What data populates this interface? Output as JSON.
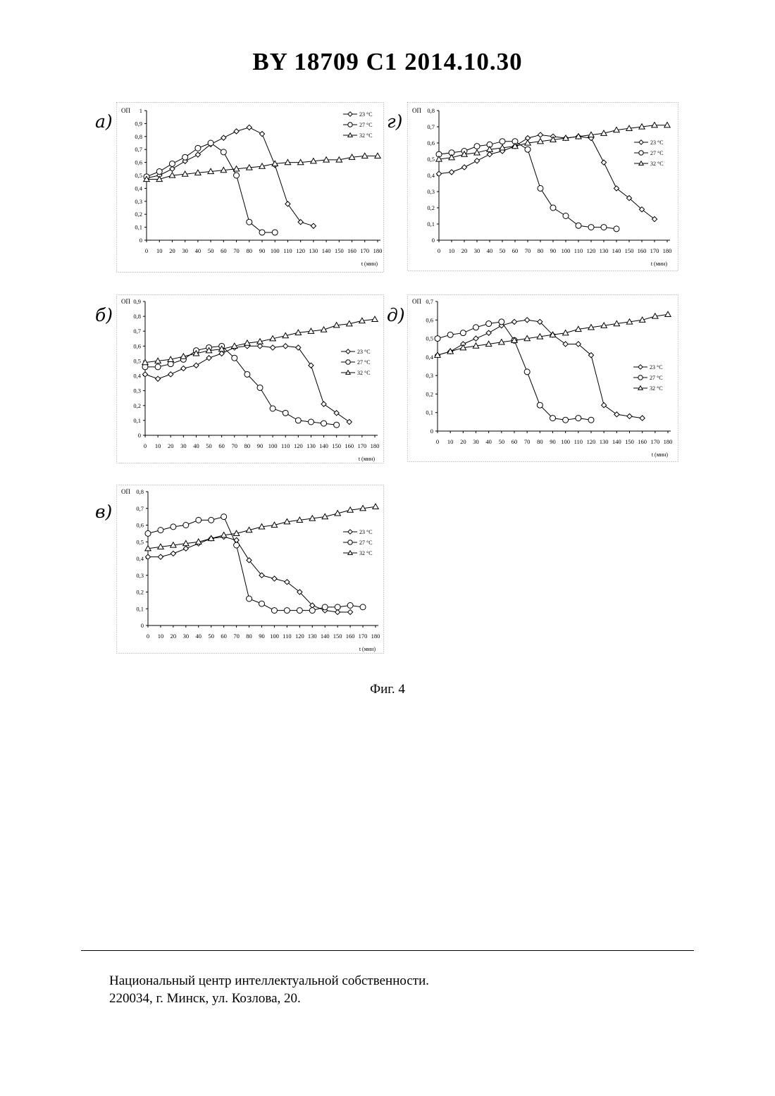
{
  "header": {
    "title": "BY  18709  C1  2014.10.30"
  },
  "caption": "Фиг. 4",
  "footer": {
    "line1": "Национальный центр интеллектуальной собственности.",
    "line2": "220034, г. Минск, ул. Козлова, 20."
  },
  "legend_labels": [
    "23 °C",
    "27 °C",
    "32 °C"
  ],
  "chart_data": [
    {
      "id": "a",
      "panel_label": "а)",
      "type": "line",
      "ylabel": "ОП",
      "xlabel": "t (мин)",
      "xlim": [
        0,
        180
      ],
      "ylim": [
        0,
        1
      ],
      "xticks": [
        "0",
        "10",
        "20",
        "30",
        "40",
        "50",
        "60",
        "70",
        "80",
        "90",
        "100",
        "110",
        "120",
        "130",
        "140",
        "150",
        "160",
        "170",
        "180"
      ],
      "yticks": [
        "0",
        "0,1",
        "0,2",
        "0,3",
        "0,4",
        "0,5",
        "0,6",
        "0,7",
        "0,8",
        "0,9",
        "1"
      ],
      "legend_position": "top-right",
      "series": [
        {
          "name": "23 °C",
          "marker": "diamond",
          "x": [
            0,
            10,
            20,
            30,
            40,
            50,
            60,
            70,
            80,
            90,
            100,
            110,
            120,
            130
          ],
          "y": [
            0.48,
            0.5,
            0.55,
            0.61,
            0.66,
            0.74,
            0.79,
            0.84,
            0.87,
            0.82,
            0.58,
            0.28,
            0.14,
            0.11
          ]
        },
        {
          "name": "27 °C",
          "marker": "circle",
          "x": [
            0,
            10,
            20,
            30,
            40,
            50,
            60,
            70,
            80,
            90,
            100
          ],
          "y": [
            0.49,
            0.53,
            0.59,
            0.64,
            0.71,
            0.75,
            0.68,
            0.5,
            0.14,
            0.06,
            0.06
          ]
        },
        {
          "name": "32 °C",
          "marker": "triangle",
          "x": [
            0,
            10,
            20,
            30,
            40,
            50,
            60,
            70,
            80,
            90,
            100,
            110,
            120,
            130,
            140,
            150,
            160,
            170,
            180
          ],
          "y": [
            0.47,
            0.47,
            0.5,
            0.51,
            0.52,
            0.53,
            0.54,
            0.55,
            0.56,
            0.57,
            0.59,
            0.6,
            0.6,
            0.61,
            0.62,
            0.62,
            0.64,
            0.65,
            0.65
          ]
        }
      ]
    },
    {
      "id": "g",
      "panel_label": "г)",
      "type": "line",
      "ylabel": "ОП",
      "xlabel": "t (мин)",
      "xlim": [
        0,
        180
      ],
      "ylim": [
        0,
        0.8
      ],
      "xticks": [
        "0",
        "10",
        "20",
        "30",
        "40",
        "50",
        "60",
        "70",
        "80",
        "90",
        "100",
        "110",
        "120",
        "130",
        "140",
        "150",
        "160",
        "170",
        "180"
      ],
      "yticks": [
        "0",
        "0,1",
        "0,2",
        "0,3",
        "0,4",
        "0,5",
        "0,6",
        "0,7",
        "0,8"
      ],
      "legend_position": "right",
      "series": [
        {
          "name": "23 °C",
          "marker": "diamond",
          "x": [
            0,
            10,
            20,
            30,
            40,
            50,
            60,
            70,
            80,
            90,
            100,
            110,
            120,
            130,
            140,
            150,
            160,
            170
          ],
          "y": [
            0.41,
            0.42,
            0.45,
            0.49,
            0.53,
            0.55,
            0.58,
            0.63,
            0.65,
            0.64,
            0.63,
            0.64,
            0.63,
            0.48,
            0.32,
            0.26,
            0.19,
            0.13
          ]
        },
        {
          "name": "27 °C",
          "marker": "circle",
          "x": [
            0,
            10,
            20,
            30,
            40,
            50,
            60,
            70,
            80,
            90,
            100,
            110,
            120,
            130,
            140
          ],
          "y": [
            0.53,
            0.54,
            0.55,
            0.58,
            0.59,
            0.61,
            0.61,
            0.56,
            0.32,
            0.2,
            0.15,
            0.09,
            0.08,
            0.08,
            0.07
          ]
        },
        {
          "name": "32 °C",
          "marker": "triangle",
          "x": [
            0,
            10,
            20,
            30,
            40,
            50,
            60,
            70,
            80,
            90,
            100,
            110,
            120,
            130,
            140,
            150,
            160,
            170,
            180
          ],
          "y": [
            0.5,
            0.51,
            0.53,
            0.54,
            0.56,
            0.57,
            0.58,
            0.6,
            0.61,
            0.62,
            0.63,
            0.64,
            0.65,
            0.66,
            0.68,
            0.69,
            0.7,
            0.71,
            0.71
          ]
        }
      ]
    },
    {
      "id": "b",
      "panel_label": "б)",
      "type": "line",
      "ylabel": "ОП",
      "xlabel": "t (мин)",
      "xlim": [
        0,
        180
      ],
      "ylim": [
        0,
        0.9
      ],
      "xticks": [
        "0",
        "10",
        "20",
        "30",
        "40",
        "50",
        "60",
        "70",
        "80",
        "90",
        "100",
        "110",
        "120",
        "130",
        "140",
        "150",
        "160",
        "170",
        "180"
      ],
      "yticks": [
        "0",
        "0,1",
        "0,2",
        "0,3",
        "0,4",
        "0,5",
        "0,6",
        "0,7",
        "0,8",
        "0,9"
      ],
      "legend_position": "right",
      "series": [
        {
          "name": "23 °C",
          "marker": "diamond",
          "x": [
            0,
            10,
            20,
            30,
            40,
            50,
            60,
            70,
            80,
            90,
            100,
            110,
            120,
            130,
            140,
            150,
            160
          ],
          "y": [
            0.41,
            0.38,
            0.41,
            0.45,
            0.47,
            0.52,
            0.55,
            0.59,
            0.6,
            0.6,
            0.59,
            0.6,
            0.59,
            0.47,
            0.21,
            0.15,
            0.09
          ]
        },
        {
          "name": "27 °C",
          "marker": "circle",
          "x": [
            0,
            10,
            20,
            30,
            40,
            50,
            60,
            70,
            80,
            90,
            100,
            110,
            120,
            130,
            140,
            150
          ],
          "y": [
            0.46,
            0.46,
            0.48,
            0.51,
            0.57,
            0.59,
            0.6,
            0.52,
            0.41,
            0.32,
            0.18,
            0.15,
            0.1,
            0.09,
            0.08,
            0.07
          ]
        },
        {
          "name": "32 °C",
          "marker": "triangle",
          "x": [
            0,
            10,
            20,
            30,
            40,
            50,
            60,
            70,
            80,
            90,
            100,
            110,
            120,
            130,
            140,
            150,
            160,
            170,
            180
          ],
          "y": [
            0.49,
            0.5,
            0.51,
            0.53,
            0.55,
            0.57,
            0.58,
            0.6,
            0.62,
            0.63,
            0.65,
            0.67,
            0.69,
            0.7,
            0.71,
            0.74,
            0.75,
            0.77,
            0.78
          ]
        }
      ]
    },
    {
      "id": "d",
      "panel_label": "д)",
      "type": "line",
      "ylabel": "ОП",
      "xlabel": "t (мин)",
      "xlim": [
        0,
        180
      ],
      "ylim": [
        0,
        0.7
      ],
      "xticks": [
        "0",
        "10",
        "20",
        "30",
        "40",
        "50",
        "60",
        "70",
        "80",
        "90",
        "100",
        "110",
        "120",
        "130",
        "140",
        "150",
        "160",
        "170",
        "180"
      ],
      "yticks": [
        "0",
        "0,1",
        "0,2",
        "0,3",
        "0,4",
        "0,5",
        "0,6",
        "0,7"
      ],
      "legend_position": "right",
      "series": [
        {
          "name": "23 °C",
          "marker": "diamond",
          "x": [
            0,
            10,
            20,
            30,
            40,
            50,
            60,
            70,
            80,
            90,
            100,
            110,
            120,
            130,
            140,
            150,
            160
          ],
          "y": [
            0.41,
            0.43,
            0.47,
            0.5,
            0.53,
            0.57,
            0.59,
            0.6,
            0.59,
            0.52,
            0.47,
            0.47,
            0.41,
            0.14,
            0.09,
            0.08,
            0.07
          ]
        },
        {
          "name": "27 °C",
          "marker": "circle",
          "x": [
            0,
            10,
            20,
            30,
            40,
            50,
            60,
            70,
            80,
            90,
            100,
            110,
            120
          ],
          "y": [
            0.5,
            0.52,
            0.53,
            0.56,
            0.58,
            0.59,
            0.49,
            0.32,
            0.14,
            0.07,
            0.06,
            0.07,
            0.06
          ]
        },
        {
          "name": "32 °C",
          "marker": "triangle",
          "x": [
            0,
            10,
            20,
            30,
            40,
            50,
            60,
            70,
            80,
            90,
            100,
            110,
            120,
            130,
            140,
            150,
            160,
            170,
            180
          ],
          "y": [
            0.41,
            0.43,
            0.45,
            0.46,
            0.47,
            0.48,
            0.49,
            0.5,
            0.51,
            0.52,
            0.53,
            0.55,
            0.56,
            0.57,
            0.58,
            0.59,
            0.6,
            0.62,
            0.63
          ]
        }
      ]
    },
    {
      "id": "v",
      "panel_label": "в)",
      "type": "line",
      "ylabel": "ОП",
      "xlabel": "t (мин)",
      "xlim": [
        0,
        180
      ],
      "ylim": [
        0,
        0.8
      ],
      "xticks": [
        "0",
        "10",
        "20",
        "30",
        "40",
        "50",
        "60",
        "70",
        "80",
        "90",
        "100",
        "110",
        "120",
        "130",
        "140",
        "150",
        "160",
        "170",
        "180"
      ],
      "yticks": [
        "0",
        "0,1",
        "0,2",
        "0,3",
        "0,4",
        "0,5",
        "0,6",
        "0,7",
        "0,8"
      ],
      "legend_position": "right",
      "series": [
        {
          "name": "23 °C",
          "marker": "diamond",
          "x": [
            0,
            10,
            20,
            30,
            40,
            50,
            60,
            70,
            80,
            90,
            100,
            110,
            120,
            130,
            140,
            150,
            160
          ],
          "y": [
            0.41,
            0.41,
            0.43,
            0.46,
            0.49,
            0.52,
            0.53,
            0.51,
            0.39,
            0.3,
            0.28,
            0.26,
            0.2,
            0.12,
            0.09,
            0.08,
            0.08
          ]
        },
        {
          "name": "27 °C",
          "marker": "circle",
          "x": [
            0,
            10,
            20,
            30,
            40,
            50,
            60,
            70,
            80,
            90,
            100,
            110,
            120,
            130,
            140,
            150,
            160,
            170
          ],
          "y": [
            0.55,
            0.57,
            0.59,
            0.6,
            0.63,
            0.63,
            0.65,
            0.48,
            0.16,
            0.13,
            0.09,
            0.09,
            0.09,
            0.09,
            0.11,
            0.11,
            0.12,
            0.11
          ]
        },
        {
          "name": "32 °C",
          "marker": "triangle",
          "x": [
            0,
            10,
            20,
            30,
            40,
            50,
            60,
            70,
            80,
            90,
            100,
            110,
            120,
            130,
            140,
            150,
            160,
            170,
            180
          ],
          "y": [
            0.46,
            0.47,
            0.48,
            0.49,
            0.5,
            0.52,
            0.54,
            0.55,
            0.57,
            0.59,
            0.6,
            0.62,
            0.63,
            0.64,
            0.65,
            0.67,
            0.69,
            0.7,
            0.71
          ]
        }
      ]
    }
  ]
}
